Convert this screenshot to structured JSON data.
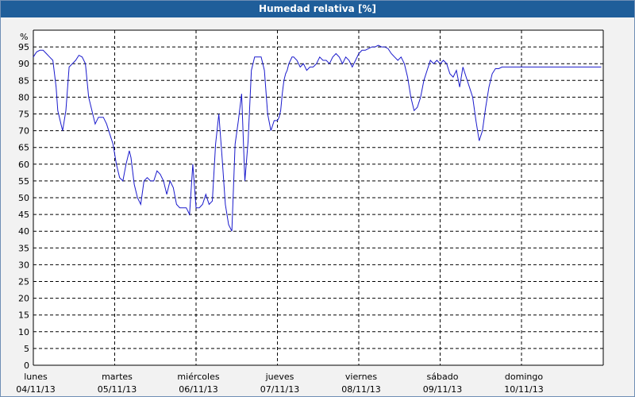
{
  "window": {
    "title": "Humedad relativa [%]"
  },
  "chart_data": {
    "type": "line",
    "title": "Humedad relativa [%]",
    "ylabel": "%",
    "ylim": [
      0,
      100
    ],
    "yticks": [
      0,
      5,
      10,
      15,
      20,
      25,
      30,
      35,
      40,
      45,
      50,
      55,
      60,
      65,
      70,
      75,
      80,
      85,
      90,
      95
    ],
    "xlim": [
      0,
      7
    ],
    "x_ticks": [
      {
        "day": "lunes",
        "date": "04/11/13"
      },
      {
        "day": "martes",
        "date": "05/11/13"
      },
      {
        "day": "miércoles",
        "date": "06/11/13"
      },
      {
        "day": "jueves",
        "date": "07/11/13"
      },
      {
        "day": "viernes",
        "date": "08/11/13"
      },
      {
        "day": "sábado",
        "date": "09/11/13"
      },
      {
        "day": "domingo",
        "date": "10/11/13"
      }
    ],
    "grid": true,
    "line_color": "#1a1acc",
    "series": [
      {
        "x": [
          0.0,
          0.04,
          0.08,
          0.12,
          0.16,
          0.2,
          0.24,
          0.28,
          0.3,
          0.34,
          0.36,
          0.4,
          0.44,
          0.48,
          0.52,
          0.56,
          0.6,
          0.64,
          0.68,
          0.72,
          0.76,
          0.8,
          0.86,
          0.9,
          0.94,
          0.98,
          1.02,
          1.06,
          1.1,
          1.14,
          1.18,
          1.2,
          1.24,
          1.28,
          1.32,
          1.36,
          1.4,
          1.44,
          1.48,
          1.52,
          1.56,
          1.6,
          1.64,
          1.68,
          1.72,
          1.76,
          1.8,
          1.84,
          1.88,
          1.92,
          1.96,
          2.0,
          2.04,
          2.08,
          2.12,
          2.16,
          2.2,
          2.24,
          2.28,
          2.32,
          2.36,
          2.4,
          2.44,
          2.48,
          2.52,
          2.56,
          2.6,
          2.64,
          2.68,
          2.72,
          2.76,
          2.8,
          2.84,
          2.88,
          2.92,
          2.96,
          3.0,
          3.02,
          3.04,
          3.06,
          3.08,
          3.1,
          3.12,
          3.14,
          3.16,
          3.18,
          3.2,
          3.24,
          3.28,
          3.32,
          3.36,
          3.4,
          3.44,
          3.48,
          3.52,
          3.56,
          3.6,
          3.64,
          3.68,
          3.72,
          3.76,
          3.8,
          3.84,
          3.88,
          3.92,
          3.96,
          4.0,
          4.04,
          4.08,
          4.12,
          4.16,
          4.2,
          4.24,
          4.28,
          4.32,
          4.36,
          4.4,
          4.44,
          4.48,
          4.52,
          4.56,
          4.6,
          4.64,
          4.68,
          4.72,
          4.76,
          4.8,
          4.84,
          4.88,
          4.92,
          4.96,
          5.0,
          5.04,
          5.08,
          5.12,
          5.16,
          5.2,
          5.24,
          5.28,
          5.32,
          5.36,
          5.4,
          5.44,
          5.48,
          5.52,
          5.56,
          5.6,
          5.64,
          5.68,
          5.72,
          5.76,
          5.8,
          5.84,
          5.88,
          5.92,
          5.96,
          6.0,
          6.04,
          6.08,
          6.12,
          6.16,
          6.2,
          6.24,
          6.28,
          6.32,
          6.36,
          6.4,
          6.44,
          6.48,
          6.52,
          6.56,
          6.6,
          6.64,
          6.68,
          6.72,
          6.76,
          6.8,
          6.84,
          6.88,
          6.92,
          6.96,
          6.98
        ],
        "y": [
          92,
          93.5,
          94,
          94,
          93,
          92,
          91,
          83,
          76,
          72,
          70,
          76,
          89,
          90,
          91,
          92.5,
          92,
          90,
          80,
          76,
          72,
          74,
          74,
          72,
          69,
          66,
          60,
          56,
          55,
          60,
          64,
          62,
          54,
          50,
          48,
          55,
          56,
          55,
          55,
          58,
          57,
          55,
          51,
          55,
          53,
          48,
          47,
          47,
          47,
          45,
          60,
          47,
          47,
          48,
          51,
          48,
          49,
          66,
          75,
          62,
          48,
          42,
          40,
          66,
          73,
          81,
          55,
          67,
          88,
          92,
          92,
          92,
          88,
          75,
          70,
          73,
          73,
          74,
          76,
          81,
          85,
          87,
          88,
          90,
          91,
          92,
          92,
          91,
          89,
          90,
          88,
          89,
          89,
          90,
          92,
          91,
          91,
          90,
          92,
          93,
          92,
          90,
          92,
          91,
          89,
          91,
          93,
          94,
          94,
          94.5,
          95,
          95,
          95.5,
          95,
          95,
          94.5,
          93,
          92,
          91,
          92,
          90,
          86,
          80,
          76,
          77,
          80,
          85,
          88,
          91,
          90,
          91,
          90,
          91,
          90,
          87,
          86,
          88,
          83,
          89,
          86,
          83,
          80,
          73,
          67,
          70,
          77,
          83,
          87,
          88.5,
          88.5,
          89,
          89,
          89,
          89,
          89,
          89,
          89,
          89,
          89,
          89,
          89,
          89,
          89,
          89,
          89,
          89,
          89,
          89,
          89,
          89,
          89,
          89,
          89,
          89,
          89,
          89,
          89,
          89,
          89,
          89,
          89,
          89
        ]
      }
    ]
  }
}
